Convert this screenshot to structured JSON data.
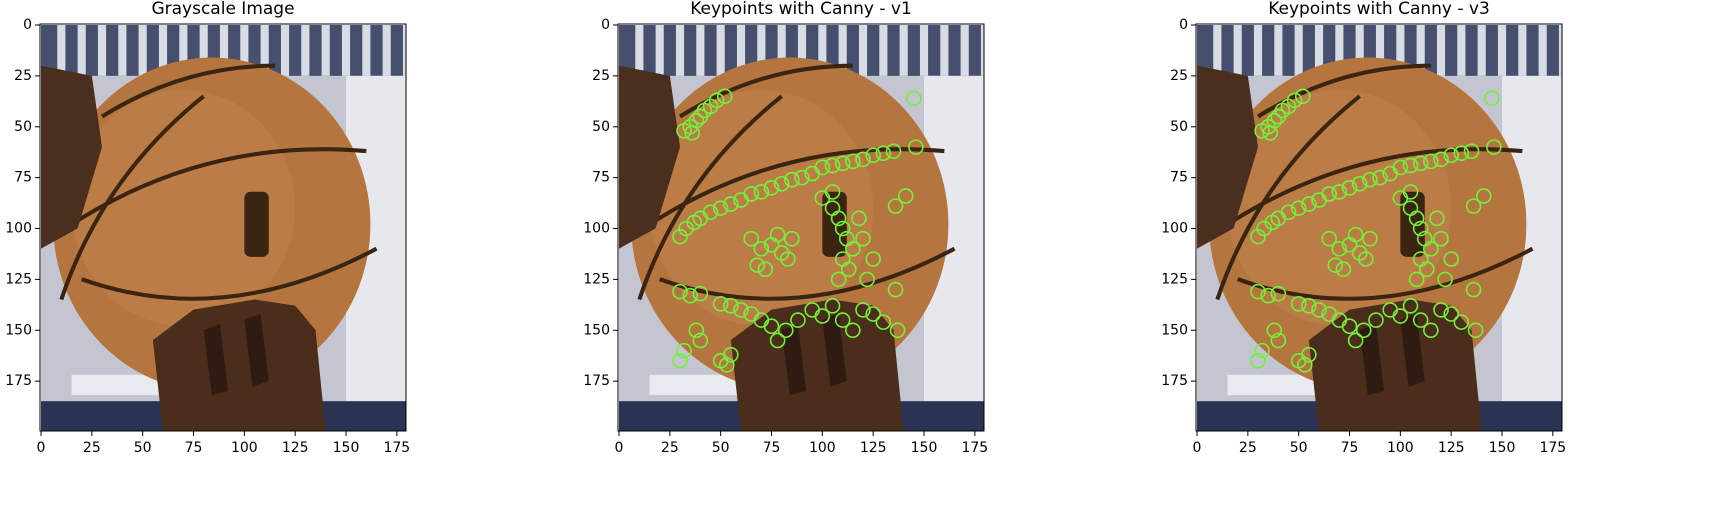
{
  "chart_data": [
    {
      "type": "image",
      "title": "Grayscale Image",
      "xlim": [
        -0.5,
        179.5
      ],
      "ylim": [
        199.5,
        -0.5
      ],
      "xticks": [
        0,
        25,
        50,
        75,
        100,
        125,
        150,
        175
      ],
      "yticks": [
        0,
        25,
        50,
        75,
        100,
        125,
        150,
        175
      ]
    },
    {
      "type": "image",
      "title": "Keypoints with Canny - v1",
      "xlim": [
        -0.5,
        179.5
      ],
      "ylim": [
        199.5,
        -0.5
      ],
      "xticks": [
        0,
        25,
        50,
        75,
        100,
        125,
        150,
        175
      ],
      "yticks": [
        0,
        25,
        50,
        75,
        100,
        125,
        150,
        175
      ],
      "keypoint_color": "#74f03c",
      "x": [
        32,
        35,
        38,
        40,
        42,
        45,
        48,
        52,
        36,
        145,
        146,
        141,
        136,
        136,
        137,
        30,
        33,
        37,
        40,
        45,
        50,
        55,
        60,
        65,
        70,
        75,
        80,
        85,
        90,
        95,
        100,
        105,
        110,
        115,
        120,
        125,
        130,
        135,
        65,
        70,
        75,
        80,
        85,
        68,
        72,
        78,
        83,
        100,
        105,
        108,
        110,
        112,
        115,
        110,
        113,
        108,
        118,
        120,
        125,
        122,
        105,
        30,
        35,
        40,
        50,
        55,
        60,
        65,
        70,
        75,
        78,
        82,
        88,
        95,
        100,
        105,
        110,
        115,
        120,
        125,
        130,
        30,
        32,
        38,
        40,
        50,
        53,
        55
      ],
      "y": [
        52,
        50,
        47,
        45,
        42,
        40,
        37,
        35,
        53,
        36,
        60,
        84,
        89,
        130,
        150,
        104,
        100,
        97,
        95,
        92,
        90,
        88,
        86,
        83,
        82,
        80,
        78,
        76,
        75,
        73,
        70,
        69,
        68,
        67,
        66,
        64,
        63,
        62,
        105,
        110,
        108,
        112,
        105,
        118,
        120,
        103,
        115,
        85,
        90,
        95,
        100,
        105,
        110,
        115,
        120,
        125,
        95,
        105,
        115,
        125,
        82,
        131,
        133,
        132,
        137,
        138,
        140,
        142,
        145,
        148,
        155,
        150,
        145,
        140,
        143,
        138,
        145,
        150,
        140,
        142,
        146,
        165,
        160,
        150,
        155,
        165,
        167,
        162
      ]
    },
    {
      "type": "image",
      "title": "Keypoints with Canny - v3",
      "xlim": [
        -0.5,
        179.5
      ],
      "ylim": [
        199.5,
        -0.5
      ],
      "xticks": [
        0,
        25,
        50,
        75,
        100,
        125,
        150,
        175
      ],
      "yticks": [
        0,
        25,
        50,
        75,
        100,
        125,
        150,
        175
      ],
      "keypoint_color": "#74f03c",
      "x": [
        32,
        35,
        38,
        40,
        42,
        45,
        48,
        52,
        36,
        145,
        146,
        141,
        136,
        136,
        137,
        30,
        33,
        37,
        40,
        45,
        50,
        55,
        60,
        65,
        70,
        75,
        80,
        85,
        90,
        95,
        100,
        105,
        110,
        115,
        120,
        125,
        130,
        135,
        65,
        70,
        75,
        80,
        85,
        68,
        72,
        78,
        83,
        100,
        105,
        108,
        110,
        112,
        115,
        110,
        113,
        108,
        118,
        120,
        125,
        122,
        105,
        30,
        35,
        40,
        50,
        55,
        60,
        65,
        70,
        75,
        78,
        82,
        88,
        95,
        100,
        105,
        110,
        115,
        120,
        125,
        130,
        30,
        32,
        38,
        40,
        50,
        53,
        55
      ],
      "y": [
        52,
        50,
        47,
        45,
        42,
        40,
        37,
        35,
        53,
        36,
        60,
        84,
        89,
        130,
        150,
        104,
        100,
        97,
        95,
        92,
        90,
        88,
        86,
        83,
        82,
        80,
        78,
        76,
        75,
        73,
        70,
        69,
        68,
        67,
        66,
        64,
        63,
        62,
        105,
        110,
        108,
        112,
        105,
        118,
        120,
        103,
        115,
        85,
        90,
        95,
        100,
        105,
        110,
        115,
        120,
        125,
        95,
        105,
        115,
        125,
        82,
        131,
        133,
        132,
        137,
        138,
        140,
        142,
        145,
        148,
        155,
        150,
        145,
        140,
        143,
        138,
        145,
        150,
        140,
        142,
        146,
        165,
        160,
        150,
        155,
        165,
        167,
        162
      ]
    }
  ]
}
